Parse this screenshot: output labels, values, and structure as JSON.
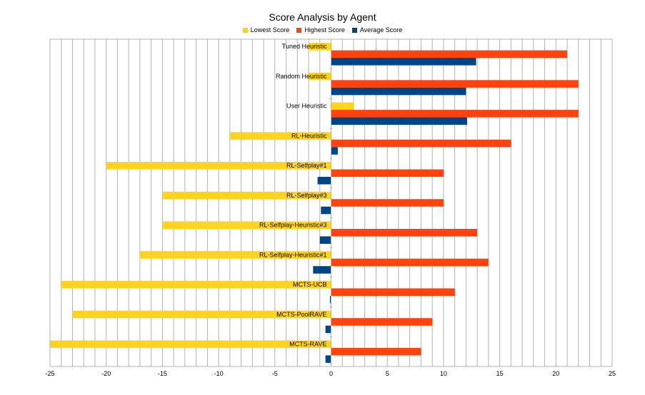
{
  "chart_data": {
    "type": "bar",
    "orientation": "horizontal",
    "title": "Score Analysis by Agent",
    "xlabel": "",
    "ylabel": "",
    "xlim": [
      -25,
      25
    ],
    "x_ticks": [
      -25,
      -20,
      -15,
      -10,
      -5,
      0,
      5,
      10,
      15,
      20,
      25
    ],
    "grid": true,
    "legend_position": "top-center",
    "categories": [
      "Tuned Heuristic",
      "Random Heuristic",
      "User Heuristic",
      "RL-Heuristic",
      "RL-Selfplay#1",
      "RL-Selfplay#3",
      "RL-Selfplay-Heuristic#3",
      "RL-Selfplay-Heuristic#1",
      "MCTS-UCB",
      "MCTS-PoolRAVE",
      "MCTS-RAVE"
    ],
    "series": [
      {
        "name": "Lowest Score",
        "color": "#FFD320",
        "values": [
          -2,
          -2,
          2,
          -9,
          -20,
          -15,
          -15,
          -17,
          -24,
          -23,
          -25
        ]
      },
      {
        "name": "Highest Score",
        "color": "#FF420E",
        "values": [
          21,
          22,
          22,
          16,
          10,
          10,
          13,
          14,
          11,
          9,
          8
        ]
      },
      {
        "name": "Average Score",
        "color": "#004586",
        "values": [
          12.9,
          12,
          12.1,
          0.6,
          -1.2,
          -0.9,
          -1.0,
          -1.6,
          -0.1,
          -0.5,
          -0.5
        ]
      }
    ]
  }
}
